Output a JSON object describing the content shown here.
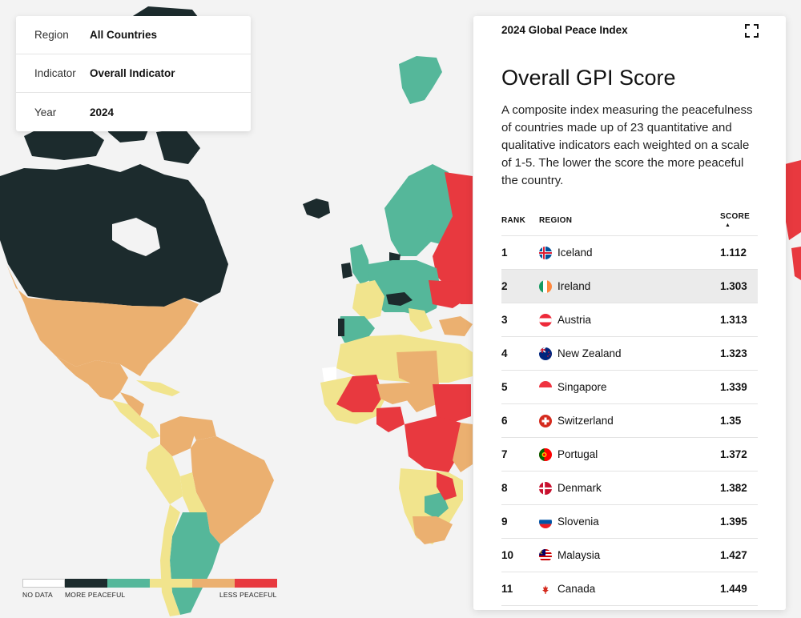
{
  "filters": {
    "region": {
      "label": "Region",
      "value": "All Countries"
    },
    "indicator": {
      "label": "Indicator",
      "value": "Overall Indicator"
    },
    "year": {
      "label": "Year",
      "value": "2024"
    }
  },
  "legend": {
    "colors": [
      "#ffffff",
      "#1c2b2d",
      "#55b79a",
      "#f1e48d",
      "#ebb070",
      "#e8393f"
    ],
    "no_data": "NO DATA",
    "more_peaceful": "MORE PEACEFUL",
    "less_peaceful": "LESS PEACEFUL"
  },
  "panel": {
    "header": "2024 Global Peace Index",
    "title": "Overall GPI Score",
    "description": "A composite index measuring the peacefulness of countries made up of 23 quantitative and qualitative indicators each weighted on a scale of 1-5. The lower the score the more peaceful the country.",
    "columns": {
      "rank": "RANK",
      "region": "REGION",
      "score": "SCORE",
      "sort_indicator": "▲"
    },
    "rows": [
      {
        "rank": "1",
        "country": "Iceland",
        "score": "1.112",
        "flag": "iceland"
      },
      {
        "rank": "2",
        "country": "Ireland",
        "score": "1.303",
        "flag": "ireland",
        "highlighted": true
      },
      {
        "rank": "3",
        "country": "Austria",
        "score": "1.313",
        "flag": "austria"
      },
      {
        "rank": "4",
        "country": "New Zealand",
        "score": "1.323",
        "flag": "new-zealand"
      },
      {
        "rank": "5",
        "country": "Singapore",
        "score": "1.339",
        "flag": "singapore"
      },
      {
        "rank": "6",
        "country": "Switzerland",
        "score": "1.35",
        "flag": "switzerland"
      },
      {
        "rank": "7",
        "country": "Portugal",
        "score": "1.372",
        "flag": "portugal"
      },
      {
        "rank": "8",
        "country": "Denmark",
        "score": "1.382",
        "flag": "denmark"
      },
      {
        "rank": "9",
        "country": "Slovenia",
        "score": "1.395",
        "flag": "slovenia"
      },
      {
        "rank": "10",
        "country": "Malaysia",
        "score": "1.427",
        "flag": "malaysia"
      },
      {
        "rank": "11",
        "country": "Canada",
        "score": "1.449",
        "flag": "canada"
      }
    ]
  }
}
